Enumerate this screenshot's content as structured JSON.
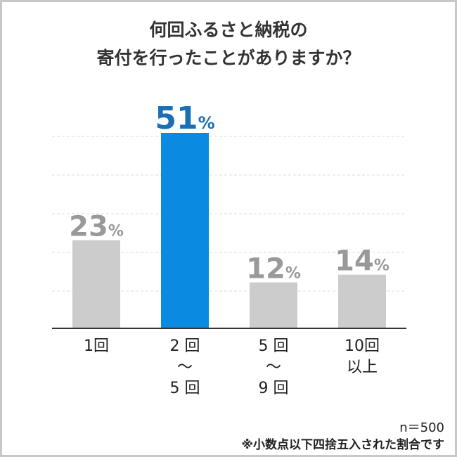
{
  "title_lines": [
    "何回ふるさと納税の",
    "寄付を行ったことがありますか？"
  ],
  "chart_data": {
    "type": "bar",
    "categories": [
      [
        "1回"
      ],
      [
        "2 回",
        "～",
        "5 回"
      ],
      [
        "5 回",
        "～",
        "9 回"
      ],
      [
        "10回",
        "以上"
      ]
    ],
    "values": [
      23,
      51,
      12,
      14
    ],
    "value_labels": [
      "23",
      "51",
      "12",
      "14"
    ],
    "unit": "%",
    "highlight_index": 1,
    "colors": {
      "default": "#cccccc",
      "highlight": "#0a8ae0",
      "label_default": "#999999",
      "label_highlight": "#1a6fb5",
      "grid": "#dddddd",
      "axis": "#333333"
    },
    "ylim": [
      0,
      51
    ],
    "grid": true
  },
  "notes": {
    "sample": "n＝500",
    "footnote": "※小数点以下四捨五入された割合です"
  }
}
